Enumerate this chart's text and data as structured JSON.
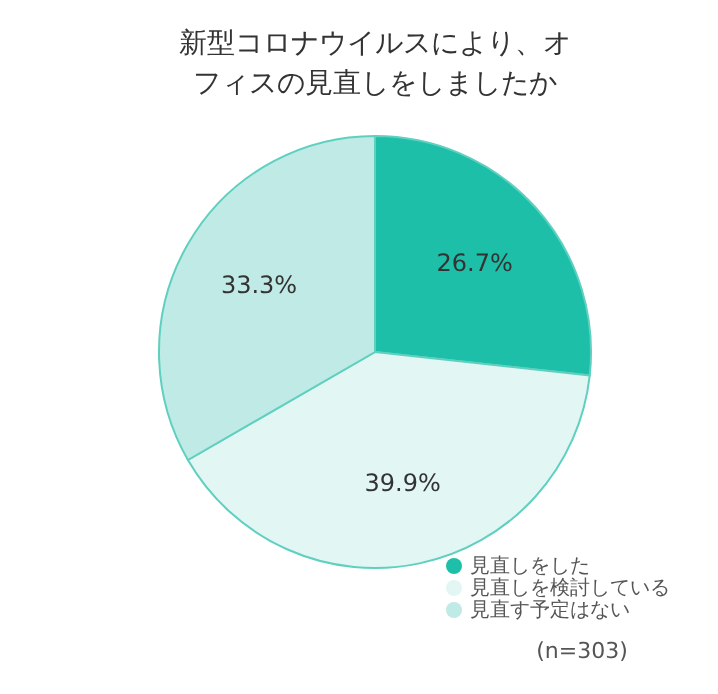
{
  "chart_data": {
    "type": "pie",
    "title": "新型コロナウイルスにより、オフィスの見直しをしましたか",
    "categories": [
      "見直しをした",
      "見直しを検討している",
      "見直す予定はない"
    ],
    "values": [
      26.7,
      39.9,
      33.3
    ],
    "value_labels": [
      "26.7%",
      "39.9%",
      "33.3%"
    ],
    "colors": [
      "#1dbfa8",
      "#e2f6f4",
      "#bfeae5"
    ],
    "legend": "bottom right",
    "annotations": [
      "(n=303)"
    ]
  }
}
